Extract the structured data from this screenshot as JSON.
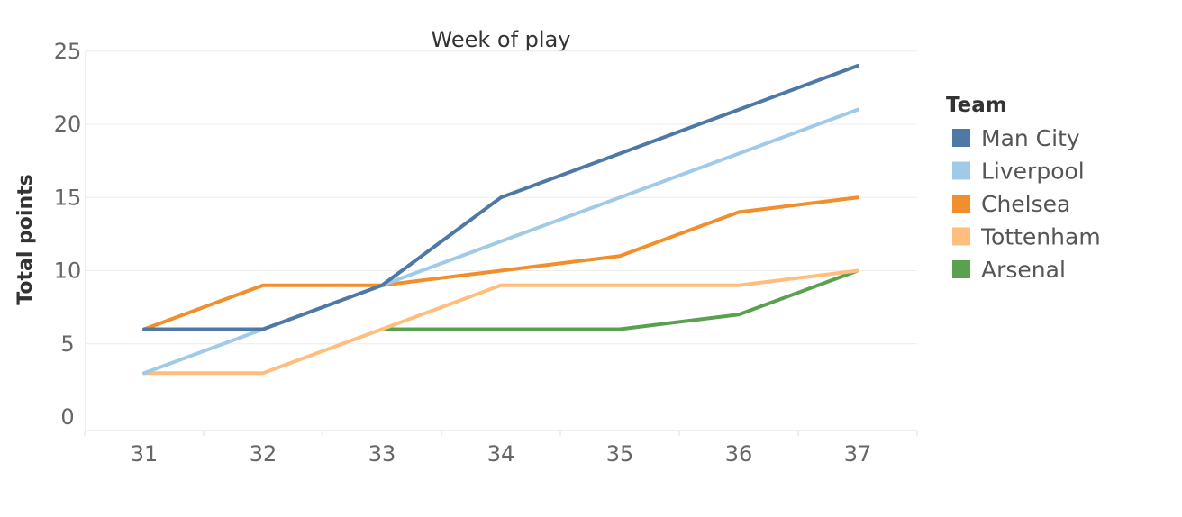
{
  "chart_data": {
    "type": "line",
    "title": "Week of play",
    "xlabel": "",
    "ylabel": "Total points",
    "x": [
      31,
      32,
      33,
      34,
      35,
      36,
      37
    ],
    "xticks": [
      "31",
      "32",
      "33",
      "34",
      "35",
      "36",
      "37"
    ],
    "yticks": [
      "0",
      "5",
      "10",
      "15",
      "20",
      "25"
    ],
    "ylim": [
      0,
      25
    ],
    "grid": true,
    "legend": {
      "title": "Team",
      "position": "right"
    },
    "series": [
      {
        "name": "Man City",
        "color": "#4e79a7",
        "values": [
          6,
          6,
          9,
          15,
          18,
          21,
          24
        ]
      },
      {
        "name": "Liverpool",
        "color": "#a0cbe8",
        "values": [
          3,
          6,
          9,
          12,
          15,
          18,
          21
        ]
      },
      {
        "name": "Chelsea",
        "color": "#f28e2b",
        "values": [
          6,
          9,
          9,
          10,
          11,
          14,
          15
        ]
      },
      {
        "name": "Tottenham",
        "color": "#ffbe7d",
        "values": [
          3,
          3,
          6,
          9,
          9,
          9,
          10
        ]
      },
      {
        "name": "Arsenal",
        "color": "#59a14f",
        "values": [
          null,
          null,
          6,
          6,
          6,
          7,
          10
        ]
      }
    ]
  }
}
